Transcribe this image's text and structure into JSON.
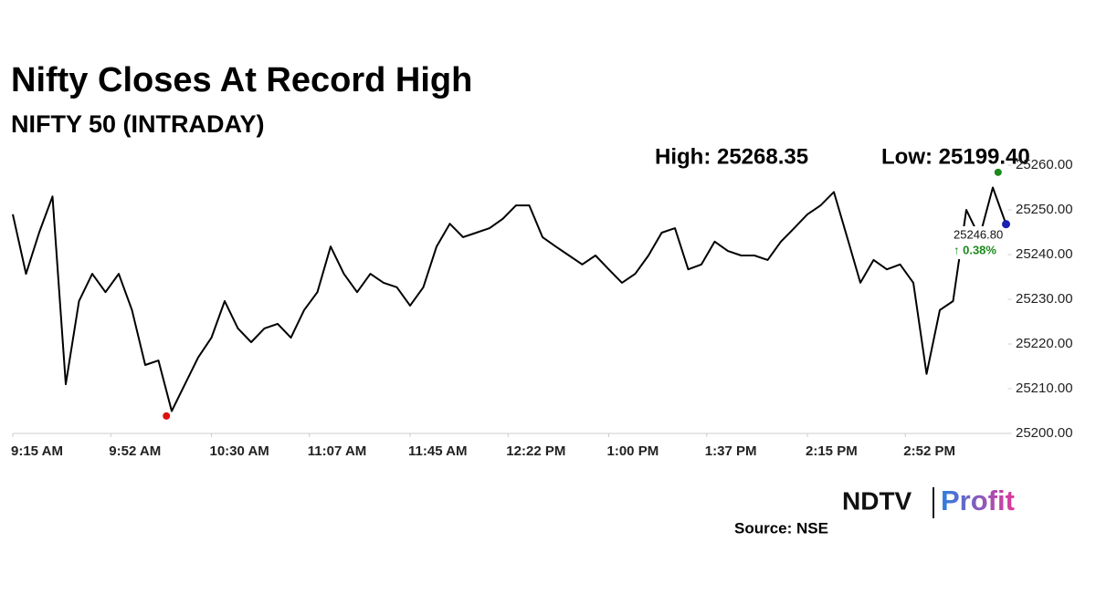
{
  "chart_data": {
    "type": "line",
    "title": "Nifty Closes At Record High",
    "subtitle": "NIFTY 50 (INTRADAY)",
    "high_label": "High: 25268.35",
    "low_label": "Low: 25199.40",
    "x": [
      "9:15 AM",
      "9:20 AM",
      "9:25 AM",
      "9:30 AM",
      "9:35 AM",
      "9:40 AM",
      "9:45 AM",
      "9:50 AM",
      "9:55 AM",
      "10:00 AM",
      "10:05 AM",
      "10:10 AM",
      "10:15 AM",
      "10:20 AM",
      "10:25 AM",
      "10:30 AM",
      "10:35 AM",
      "10:40 AM",
      "10:45 AM",
      "10:50 AM",
      "10:55 AM",
      "11:00 AM",
      "11:05 AM",
      "11:10 AM",
      "11:15 AM",
      "11:20 AM",
      "11:25 AM",
      "11:30 AM",
      "11:35 AM",
      "11:40 AM",
      "11:45 AM",
      "11:50 AM",
      "11:55 AM",
      "12:00 PM",
      "12:05 PM",
      "12:10 PM",
      "12:15 PM",
      "12:20 PM",
      "12:25 PM",
      "12:30 PM",
      "12:35 PM",
      "12:40 PM",
      "12:45 PM",
      "12:50 PM",
      "12:55 PM",
      "1:00 PM",
      "1:05 PM",
      "1:10 PM",
      "1:15 PM",
      "1:20 PM",
      "1:25 PM",
      "1:30 PM",
      "1:35 PM",
      "1:40 PM",
      "1:45 PM",
      "1:50 PM",
      "1:55 PM",
      "2:00 PM",
      "2:05 PM",
      "2:10 PM",
      "2:15 PM",
      "2:20 PM",
      "2:25 PM",
      "2:30 PM",
      "2:35 PM",
      "2:40 PM",
      "2:45 PM",
      "2:50 PM",
      "2:55 PM",
      "3:00 PM",
      "3:05 PM",
      "3:10 PM",
      "3:15 PM",
      "3:20 PM",
      "3:25 PM",
      "3:30 PM"
    ],
    "values": [
      25249,
      25235.7,
      25245,
      25253,
      25211,
      25229.6,
      25235.7,
      25231.6,
      25235.7,
      25227.6,
      25215.3,
      25216.3,
      25205,
      25211,
      25217,
      25221.4,
      25229.6,
      25223.5,
      25220.4,
      25223.5,
      25224.5,
      25221.4,
      25227.6,
      25231.6,
      25241.8,
      25235.7,
      25231.6,
      25235.7,
      25233.7,
      25232.7,
      25228.6,
      25232.7,
      25241.8,
      25246.9,
      25243.9,
      25244.9,
      25245.9,
      25248,
      25251,
      25251,
      25243.9,
      25241.8,
      25239.8,
      25237.8,
      25239.8,
      25236.7,
      25233.7,
      25235.7,
      25239.8,
      25244.9,
      25245.9,
      25236.7,
      25237.8,
      25242.9,
      25240.8,
      25239.8,
      25239.8,
      25238.8,
      25242.9,
      25245.9,
      25249,
      25251,
      25254,
      25243.9,
      25233.7,
      25238.8,
      25236.7,
      25237.8,
      25233.7,
      25213.3,
      25227.6,
      25229.6,
      25250,
      25243.9,
      25255,
      25246.8
    ],
    "color": "#000000",
    "last_label": "25246.80",
    "last_change": "↑ 0.38%",
    "high_point": {
      "x": "3:27 PM",
      "value": 25258.4,
      "color": "#1a8a1a"
    },
    "low_point": {
      "x": "10:13 AM",
      "value": 25203.9,
      "color": "#e01010"
    },
    "last_color": "#1a22b0",
    "ylim": [
      25200,
      25260
    ],
    "yticks": [
      {
        "value": 25200,
        "label": "25200.00"
      },
      {
        "value": 25210,
        "label": "25210.00"
      },
      {
        "value": 25220,
        "label": "25220.00"
      },
      {
        "value": 25230,
        "label": "25230.00"
      },
      {
        "value": 25240,
        "label": "25240.00"
      },
      {
        "value": 25250,
        "label": "25250.00"
      },
      {
        "value": 25260,
        "label": "25260.00"
      }
    ],
    "xticks": [
      "9:15 AM",
      "9:52 AM",
      "10:30 AM",
      "11:07 AM",
      "11:45 AM",
      "12:22 PM",
      "1:00 PM",
      "1:37 PM",
      "2:15 PM",
      "2:52 PM"
    ],
    "grid": false,
    "logo": {
      "left": "NDTV",
      "right": "Profit"
    },
    "source": "Source: NSE"
  }
}
